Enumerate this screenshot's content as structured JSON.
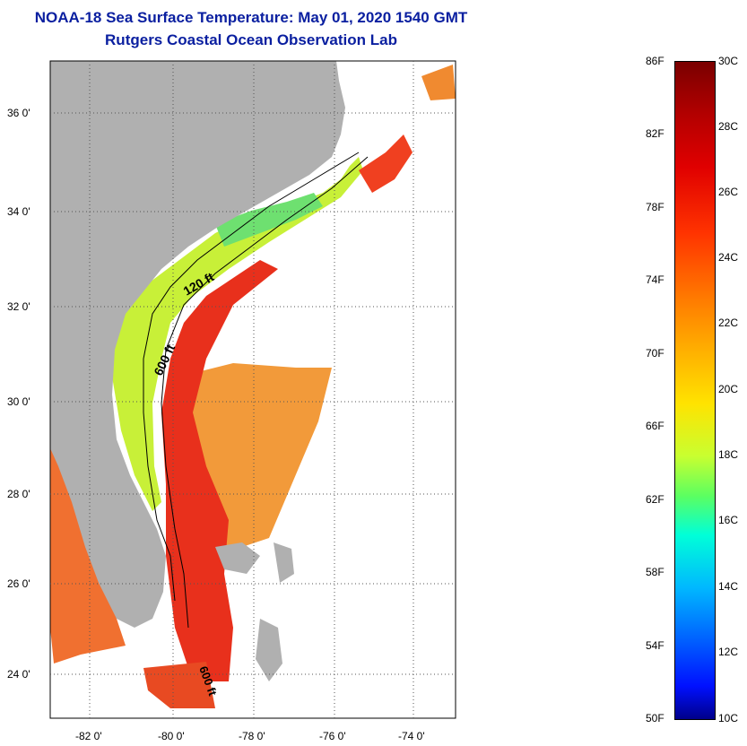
{
  "title": {
    "line1": "NOAA-18 Sea Surface Temperature:  May 01, 2020 1540 GMT",
    "line2": "Rutgers Coastal Ocean Observation Lab"
  },
  "map": {
    "lat_labels": [
      "36 0'",
      "34 0'",
      "32 0'",
      "30 0'",
      "28 0'",
      "26 0'",
      "24 0'"
    ],
    "lon_labels": [
      "-82 0'",
      "-80 0'",
      "-78 0'",
      "-76 0'",
      "-74 0'"
    ],
    "contour_labels": [
      "120 ft",
      "600 ft",
      "600 ft"
    ],
    "colors": {
      "land": "#b0b0b0",
      "warm": "#e83018",
      "orange": "#f08a28",
      "cool": "#b8f030",
      "green": "#50e070"
    }
  },
  "colorbar": {
    "fahrenheit": [
      "86F",
      "82F",
      "78F",
      "74F",
      "70F",
      "66F",
      "62F",
      "58F",
      "54F",
      "50F"
    ],
    "celsius": [
      "30C",
      "28C",
      "26C",
      "24C",
      "22C",
      "20C",
      "18C",
      "16C",
      "14C",
      "12C",
      "10C"
    ]
  }
}
